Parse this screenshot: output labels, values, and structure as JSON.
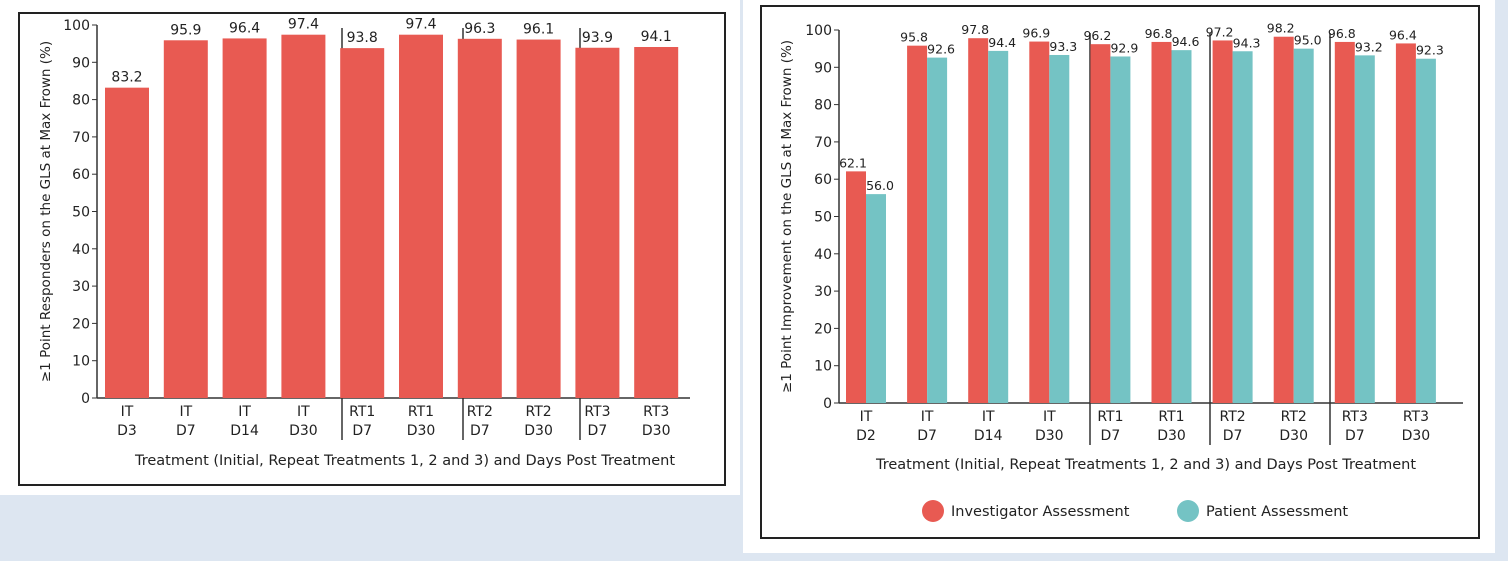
{
  "chart_data": [
    {
      "type": "bar",
      "ylabel": "≥1 Point Responders on the GLS at Max Frown (%)",
      "xlabel": "Treatment (Initial, Repeat Treatments 1, 2 and 3) and Days Post Treatment",
      "ylim": [
        0,
        100
      ],
      "yticks": [
        0,
        10,
        20,
        30,
        40,
        50,
        60,
        70,
        80,
        90,
        100
      ],
      "categories": [
        [
          "IT",
          "D3"
        ],
        [
          "IT",
          "D7"
        ],
        [
          "IT",
          "D14"
        ],
        [
          "IT",
          "D30"
        ],
        [
          "RT1",
          "D7"
        ],
        [
          "RT1",
          "D30"
        ],
        [
          "RT2",
          "D7"
        ],
        [
          "RT2",
          "D30"
        ],
        [
          "RT3",
          "D7"
        ],
        [
          "RT3",
          "D30"
        ]
      ],
      "series": [
        {
          "name": "Responders",
          "color": "#e85a52",
          "values": [
            83.2,
            95.9,
            96.4,
            97.4,
            93.8,
            97.4,
            96.3,
            96.1,
            93.9,
            94.1
          ]
        }
      ]
    },
    {
      "type": "bar",
      "ylabel": "≥1 Point Improvement on the GLS at Max Frown (%)",
      "xlabel": "Treatment (Initial, Repeat Treatments 1, 2 and 3) and Days Post Treatment",
      "ylim": [
        0,
        100
      ],
      "yticks": [
        0,
        10,
        20,
        30,
        40,
        50,
        60,
        70,
        80,
        90,
        100
      ],
      "categories": [
        [
          "IT",
          "D2"
        ],
        [
          "IT",
          "D7"
        ],
        [
          "IT",
          "D14"
        ],
        [
          "IT",
          "D30"
        ],
        [
          "RT1",
          "D7"
        ],
        [
          "RT1",
          "D30"
        ],
        [
          "RT2",
          "D7"
        ],
        [
          "RT2",
          "D30"
        ],
        [
          "RT3",
          "D7"
        ],
        [
          "RT3",
          "D30"
        ]
      ],
      "series": [
        {
          "name": "Investigator Assessment",
          "color": "#e85a52",
          "values": [
            62.1,
            95.8,
            97.8,
            96.9,
            96.2,
            96.8,
            97.2,
            98.2,
            96.8,
            96.4
          ]
        },
        {
          "name": "Patient Assessment",
          "color": "#74c3c4",
          "values": [
            56.0,
            92.6,
            94.4,
            93.3,
            92.9,
            94.6,
            94.3,
            95.0,
            93.2,
            92.3
          ]
        }
      ],
      "legend": "bottom"
    }
  ]
}
